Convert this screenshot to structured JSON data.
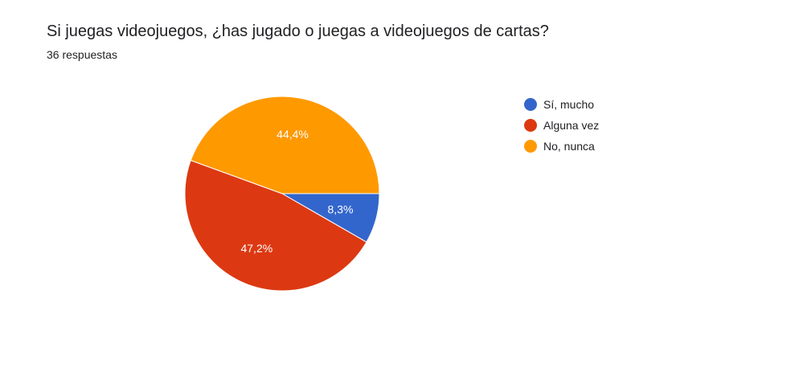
{
  "title": "Si juegas videojuegos, ¿has jugado o juegas a videojuegos de cartas?",
  "subtitle": "36 respuestas",
  "chart_data": {
    "type": "pie",
    "title": "Si juegas videojuegos, ¿has jugado o juegas a videojuegos de cartas?",
    "categories": [
      "Sí, mucho",
      "Alguna vez",
      "No, nunca"
    ],
    "values": [
      8.3,
      47.2,
      44.4
    ],
    "labels": [
      "8,3%",
      "47,2%",
      "44,4%"
    ],
    "colors": [
      "#3366cc",
      "#dc3912",
      "#ff9900"
    ],
    "legend_position": "right"
  }
}
